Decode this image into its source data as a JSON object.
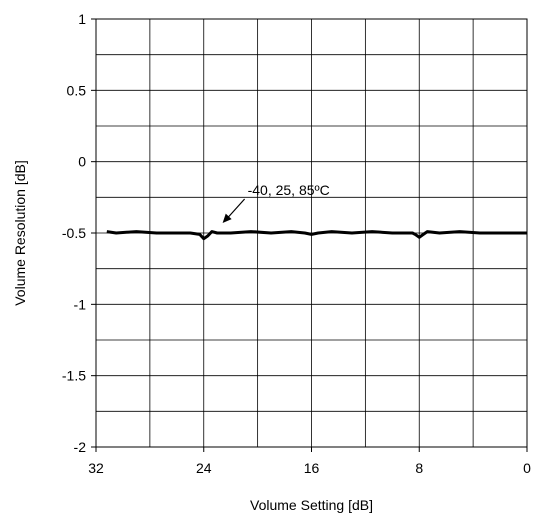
{
  "chart_data": {
    "type": "line",
    "title": "",
    "xlabel": "Volume Setting [dB]",
    "ylabel": "Volume Resolution [dB]",
    "xlim": [
      32,
      0
    ],
    "ylim": [
      -2,
      1
    ],
    "x_reversed": true,
    "x_ticks": [
      32,
      24,
      16,
      8,
      0
    ],
    "x_tick_labels": [
      "32",
      "24",
      "16",
      "8",
      "0"
    ],
    "y_ticks": [
      1,
      0.5,
      0,
      -0.5,
      -1,
      -1.5,
      -2
    ],
    "y_tick_labels": [
      "1",
      "0.5",
      "0",
      "-0.5",
      "-1",
      "-1.5",
      "-2"
    ],
    "grid": true,
    "legend": "none",
    "series": [
      {
        "color": "#000000",
        "points": [
          [
            31.2,
            -0.49
          ],
          [
            30.5,
            -0.5
          ],
          [
            29.0,
            -0.49
          ],
          [
            27.5,
            -0.5
          ],
          [
            26.0,
            -0.5
          ],
          [
            25.0,
            -0.5
          ],
          [
            24.3,
            -0.51
          ],
          [
            24.0,
            -0.54
          ],
          [
            23.7,
            -0.52
          ],
          [
            23.4,
            -0.49
          ],
          [
            23.0,
            -0.5
          ],
          [
            22.0,
            -0.5
          ],
          [
            20.5,
            -0.49
          ],
          [
            19.0,
            -0.5
          ],
          [
            17.5,
            -0.49
          ],
          [
            16.5,
            -0.5
          ],
          [
            16.0,
            -0.51
          ],
          [
            15.5,
            -0.5
          ],
          [
            14.5,
            -0.49
          ],
          [
            13.0,
            -0.5
          ],
          [
            11.5,
            -0.49
          ],
          [
            10.0,
            -0.5
          ],
          [
            8.5,
            -0.5
          ],
          [
            8.3,
            -0.51
          ],
          [
            8.0,
            -0.53
          ],
          [
            7.7,
            -0.51
          ],
          [
            7.4,
            -0.49
          ],
          [
            6.5,
            -0.5
          ],
          [
            5.0,
            -0.49
          ],
          [
            3.5,
            -0.5
          ],
          [
            2.0,
            -0.5
          ],
          [
            0.5,
            -0.5
          ],
          [
            0.0,
            -0.5
          ]
        ]
      }
    ],
    "annotations": [
      {
        "text": "-40, 25, 85ºC",
        "arrow_to": [
          22.6,
          -0.43
        ]
      }
    ]
  }
}
